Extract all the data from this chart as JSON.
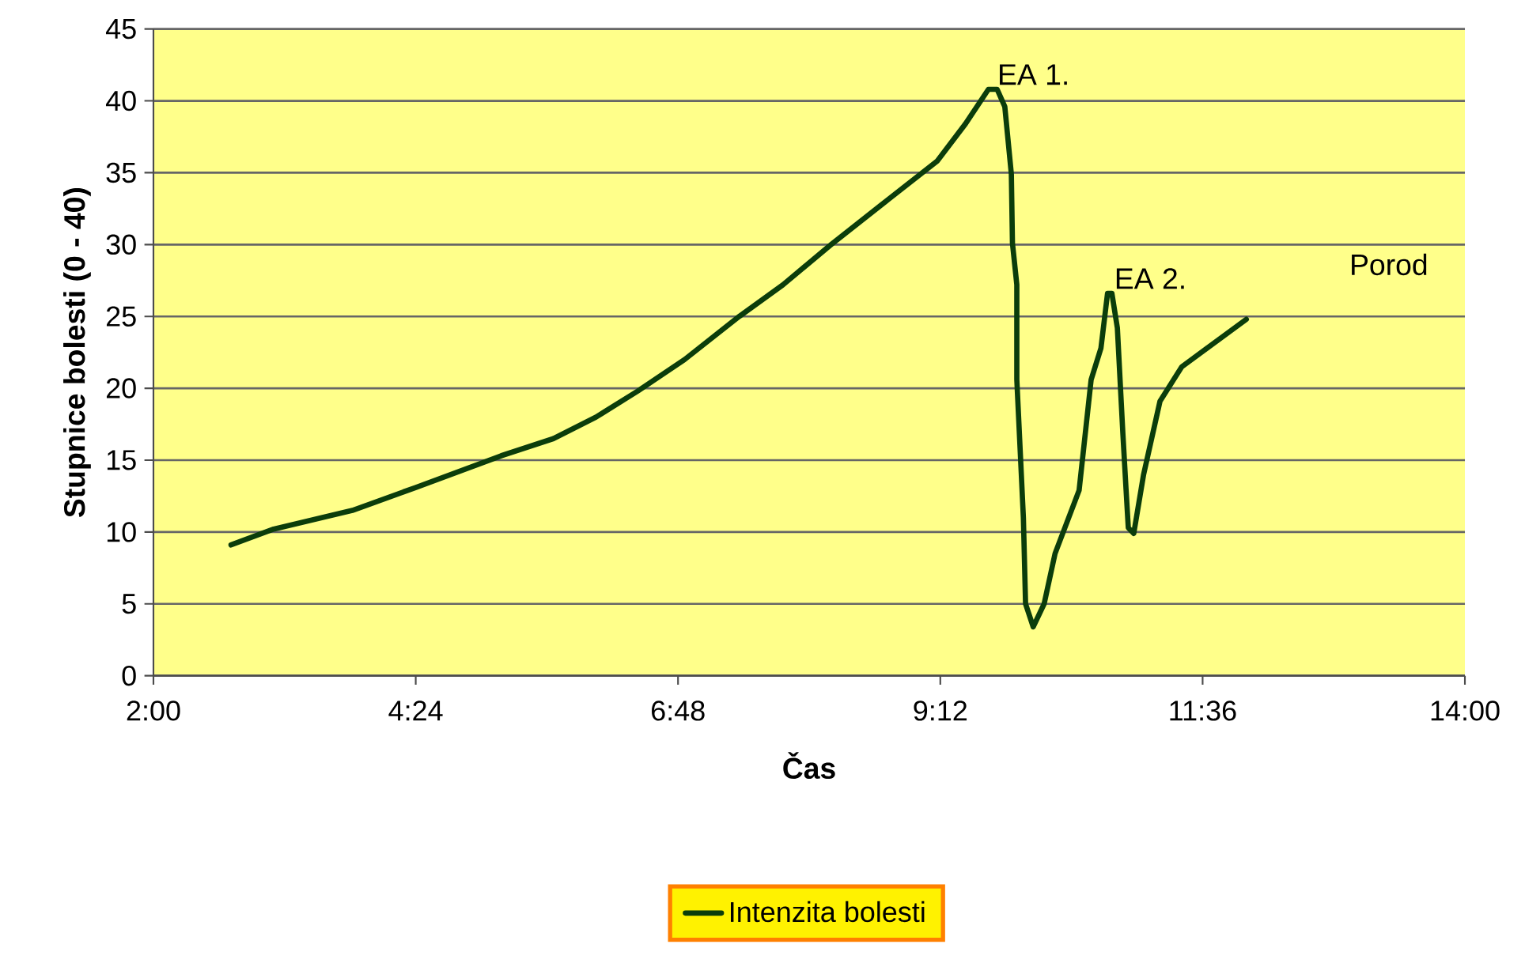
{
  "chart_data": {
    "type": "line",
    "xlabel": "Čas",
    "ylabel": "Stupnice bolesti (0 - 40)",
    "x": [
      2.71,
      3.1,
      3.82,
      4.4,
      5.18,
      5.66,
      6.05,
      6.43,
      6.86,
      7.36,
      7.76,
      8.2,
      8.7,
      9.17,
      9.43,
      9.64,
      9.72,
      9.79,
      9.85,
      9.86,
      9.9,
      9.9,
      9.96,
      9.98,
      10.05,
      10.15,
      10.25,
      10.47,
      10.58,
      10.67,
      10.73,
      10.77,
      10.82,
      10.87,
      10.9,
      10.92,
      10.97,
      11.06,
      11.21,
      11.41,
      12.0
    ],
    "series": [
      {
        "name": "Intenzita bolesti",
        "color": "#0b3d0b",
        "values": [
          9.1,
          10.2,
          11.5,
          13.1,
          15.3,
          16.5,
          18.0,
          19.8,
          22.0,
          25.0,
          27.2,
          30.0,
          33.0,
          35.8,
          38.4,
          40.8,
          40.8,
          39.6,
          34.9,
          30.1,
          27.2,
          20.6,
          11.0,
          5.0,
          3.4,
          5.0,
          8.5,
          12.9,
          20.6,
          22.8,
          26.6,
          26.6,
          24.2,
          16.9,
          12.9,
          10.3,
          9.9,
          14.0,
          19.1,
          21.5,
          24.8
        ]
      }
    ],
    "xlim": [
      2,
      14
    ],
    "xticks": [
      {
        "value": 2,
        "label": "2:00"
      },
      {
        "value": 4.4,
        "label": "4:24"
      },
      {
        "value": 6.8,
        "label": "6:48"
      },
      {
        "value": 9.2,
        "label": "9:12"
      },
      {
        "value": 11.6,
        "label": "11:36"
      },
      {
        "value": 14,
        "label": "14:00"
      }
    ],
    "ylim": [
      0,
      45
    ],
    "yticks": [
      0,
      5,
      10,
      15,
      20,
      25,
      30,
      35,
      40,
      45
    ],
    "grid": "y",
    "legend": "bottom",
    "marker": "none",
    "line_style": "solid",
    "annotations": [
      {
        "text": "EA 1.",
        "x": 9.68,
        "y": 40.8
      },
      {
        "text": "EA 2.",
        "x": 10.75,
        "y": 26.6
      },
      "Porod"
    ]
  }
}
